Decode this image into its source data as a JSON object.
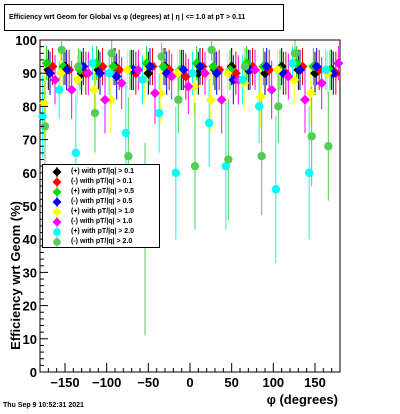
{
  "title": "Efficiency wrt Geom for Global vs φ (degrees) at |  η | <= 1.0 at pT > 0.11",
  "footer": "Thu Sep  9 10:52:31 2021",
  "chart_data": {
    "type": "scatter",
    "xlabel": "φ (degrees)",
    "ylabel": "Efficiency wrt Geom (%)",
    "xlim": [
      -180,
      180
    ],
    "ylim": [
      0,
      100
    ],
    "xticks": [
      -150,
      -100,
      -50,
      0,
      50,
      100,
      150
    ],
    "yticks": [
      0,
      10,
      20,
      30,
      40,
      50,
      60,
      70,
      80,
      90,
      100
    ],
    "legend_position": "left-middle",
    "series": [
      {
        "name": "(+) with pT/|q| > 0.1",
        "color": "#000000",
        "marker": "diamond",
        "x": [
          -170,
          -150,
          -130,
          -110,
          -90,
          -70,
          -50,
          -30,
          -10,
          10,
          30,
          50,
          70,
          90,
          110,
          130,
          150,
          170
        ],
        "y": [
          91,
          92,
          90,
          91,
          92,
          91,
          90,
          92,
          91,
          90,
          91,
          92,
          91,
          90,
          92,
          91,
          90,
          91
        ]
      },
      {
        "name": "(-) with pT/|q| > 0.1",
        "color": "#ff0000",
        "marker": "diamond",
        "x": [
          -165,
          -145,
          -125,
          -105,
          -85,
          -65,
          -45,
          -25,
          -5,
          15,
          35,
          55,
          75,
          95,
          115,
          135,
          155,
          175
        ],
        "y": [
          92,
          91,
          90,
          92,
          91,
          90,
          92,
          91,
          89,
          92,
          91,
          90,
          92,
          91,
          90,
          92,
          91,
          90
        ]
      },
      {
        "name": "(+) with pT/|q| > 0.5",
        "color": "#00dd00",
        "marker": "diamond",
        "x": [
          -172,
          -152,
          -132,
          -112,
          -92,
          -72,
          -52,
          -32,
          -12,
          8,
          28,
          48,
          68,
          88,
          108,
          128,
          148,
          168
        ],
        "y": [
          93,
          92,
          91,
          93,
          92,
          91,
          93,
          92,
          91,
          93,
          92,
          91,
          93,
          92,
          91,
          93,
          92,
          91
        ]
      },
      {
        "name": "(-) with pT/|q| > 0.5",
        "color": "#0000ff",
        "marker": "diamond",
        "x": [
          -168,
          -148,
          -128,
          -108,
          -88,
          -68,
          -48,
          -28,
          -8,
          12,
          32,
          52,
          72,
          92,
          112,
          132,
          152,
          172
        ],
        "y": [
          90,
          91,
          92,
          90,
          89,
          91,
          92,
          90,
          91,
          92,
          90,
          88,
          91,
          92,
          90,
          91,
          92,
          90
        ]
      },
      {
        "name": "(+) with pT/|q| > 1.0",
        "color": "#ffff00",
        "marker": "diamond",
        "x": [
          -175,
          -155,
          -135,
          -115,
          -95,
          -75,
          -55,
          -35,
          -15,
          5,
          25,
          45,
          65,
          85,
          105,
          125,
          145,
          165
        ],
        "y": [
          81,
          90,
          88,
          85,
          82,
          91,
          88,
          84,
          90,
          86,
          82,
          90,
          87,
          83,
          91,
          88,
          84,
          90
        ]
      },
      {
        "name": "(-) with pT/|q| > 1.0",
        "color": "#ff00ff",
        "marker": "diamond",
        "x": [
          -162,
          -142,
          -122,
          -102,
          -82,
          -62,
          -42,
          -22,
          -2,
          18,
          38,
          58,
          78,
          98,
          118,
          138,
          158,
          178
        ],
        "y": [
          88,
          85,
          90,
          82,
          87,
          91,
          84,
          89,
          86,
          90,
          82,
          88,
          91,
          85,
          89,
          82,
          87,
          93
        ]
      },
      {
        "name": "(+) with pT/|q| > 2.0",
        "color": "#00ffff",
        "marker": "circle",
        "x": [
          -177,
          -157,
          -137,
          -117,
          -97,
          -77,
          -57,
          -37,
          -17,
          3,
          23,
          43,
          63,
          83,
          103,
          123,
          143,
          163
        ],
        "y": [
          77,
          85,
          66,
          93,
          90,
          72,
          88,
          78,
          60,
          90,
          75,
          62,
          88,
          80,
          55,
          93,
          60,
          91
        ]
      },
      {
        "name": "(-) with pT/|q| > 2.0",
        "color": "#55cc55",
        "marker": "circle",
        "x": [
          -174,
          -154,
          -134,
          -114,
          -94,
          -74,
          -54,
          -34,
          -14,
          6,
          26,
          46,
          66,
          86,
          106,
          126,
          146,
          166
        ],
        "y": [
          74,
          97,
          92,
          78,
          96,
          65,
          40,
          95,
          82,
          62,
          97,
          64,
          92,
          65,
          80,
          96,
          71,
          68
        ]
      }
    ]
  }
}
